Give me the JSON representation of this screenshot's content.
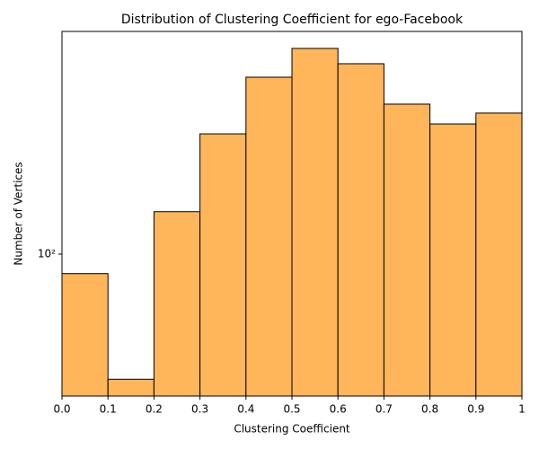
{
  "chart_data": {
    "type": "histogram",
    "title": "Distribution of Clustering Coefficient for ego-Facebook",
    "xlabel": "Clustering Coefficient",
    "ylabel": "Number of Vertices",
    "bins": [
      0,
      0.1,
      0.2,
      0.3,
      0.4,
      0.5,
      0.6,
      0.7,
      0.8,
      0.9,
      1
    ],
    "counts": [
      82,
      28,
      154,
      340,
      605,
      811,
      694,
      460,
      376,
      420
    ],
    "color": "#ffb55a",
    "edgecolor": "#000000",
    "xlim": [
      0,
      1
    ],
    "xticks": [
      {
        "value": 0,
        "label": "0.0"
      },
      0.1,
      0.2,
      0.3,
      0.4,
      0.5,
      0.6,
      0.7,
      0.8,
      0.9,
      1
    ],
    "ylim": [
      23.6,
      964
    ],
    "yticks": [
      {
        "value": 100,
        "label": "10²"
      }
    ],
    "yscale": "log"
  }
}
